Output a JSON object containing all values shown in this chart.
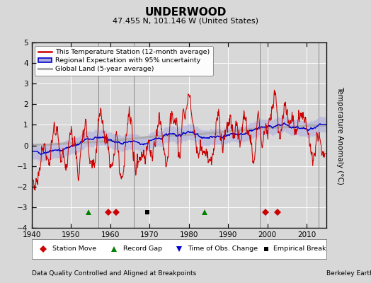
{
  "title": "UNDERWOOD",
  "subtitle": "47.455 N, 101.146 W (United States)",
  "ylabel": "Temperature Anomaly (°C)",
  "footer_left": "Data Quality Controlled and Aligned at Breakpoints",
  "footer_right": "Berkeley Earth",
  "xlim": [
    1940,
    2015
  ],
  "ylim": [
    -4,
    5
  ],
  "yticks": [
    -4,
    -3,
    -2,
    -1,
    0,
    1,
    2,
    3,
    4,
    5
  ],
  "xticks": [
    1940,
    1950,
    1960,
    1970,
    1980,
    1990,
    2000,
    2010
  ],
  "bg_color": "#d8d8d8",
  "plot_bg_color": "#d8d8d8",
  "legend_labels": [
    "This Temperature Station (12-month average)",
    "Regional Expectation with 95% uncertainty",
    "Global Land (5-year average)"
  ],
  "station_moves": [
    1959.5,
    1961.5,
    1999.5,
    2002.5
  ],
  "record_gaps": [
    1954.5,
    1984.0
  ],
  "empirical_breaks": [
    1969.5
  ],
  "time_of_obs_changes": [],
  "vertical_lines": [
    1957,
    1966,
    1998,
    2013
  ],
  "red_color": "#cc0000",
  "blue_color": "#0000cc",
  "blue_fill_color": "#aaaadd",
  "gray_color": "#aaaaaa",
  "marker_y": -3.25,
  "grid_color": "#ffffff",
  "seed_station": 77,
  "seed_regional": 42
}
